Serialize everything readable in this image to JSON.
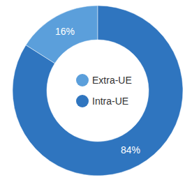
{
  "chart_data": {
    "type": "pie",
    "categories": [
      "Extra-UE",
      "Intra-UE"
    ],
    "values": [
      16,
      84
    ],
    "value_labels": [
      "16%",
      "84%"
    ],
    "colors": [
      "#5b9fdb",
      "#2f75bf"
    ],
    "data_labels": true,
    "legend": "center"
  }
}
